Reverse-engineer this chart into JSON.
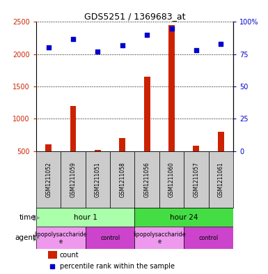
{
  "title": "GDS5251 / 1369683_at",
  "samples": [
    "GSM1211052",
    "GSM1211059",
    "GSM1211051",
    "GSM1211058",
    "GSM1211056",
    "GSM1211060",
    "GSM1211057",
    "GSM1211061"
  ],
  "counts": [
    600,
    1200,
    520,
    700,
    1650,
    2450,
    580,
    800
  ],
  "percentiles": [
    80,
    87,
    77,
    82,
    90,
    95,
    78,
    83
  ],
  "bar_color": "#cc2200",
  "scatter_color": "#0000cc",
  "ylim_left": [
    500,
    2500
  ],
  "ylim_right": [
    0,
    100
  ],
  "yticks_left": [
    500,
    1000,
    1500,
    2000,
    2500
  ],
  "yticks_right": [
    0,
    25,
    50,
    75,
    100
  ],
  "ytick_labels_right": [
    "0",
    "25",
    "50",
    "75",
    "100%"
  ],
  "time_groups": [
    {
      "label": "hour 1",
      "start": 0,
      "end": 4,
      "color": "#aaffaa"
    },
    {
      "label": "hour 24",
      "start": 4,
      "end": 8,
      "color": "#44dd44"
    }
  ],
  "agent_groups": [
    {
      "label": "lipopolysaccharide\ne",
      "start": 0,
      "end": 2,
      "color": "#ee99ee"
    },
    {
      "label": "control",
      "start": 2,
      "end": 4,
      "color": "#cc44cc"
    },
    {
      "label": "lipopolysaccharide\ne",
      "start": 4,
      "end": 6,
      "color": "#ee99ee"
    },
    {
      "label": "control",
      "start": 6,
      "end": 8,
      "color": "#cc44cc"
    }
  ],
  "legend_count_color": "#cc2200",
  "legend_scatter_color": "#0000cc",
  "left_tick_color": "#cc2200",
  "right_tick_color": "#0000cc",
  "grid_linestyle": "dotted",
  "bg_color": "#ffffff",
  "plot_bg_color": "#ffffff",
  "sample_bg_color": "#cccccc",
  "time_arrow_label": "time",
  "agent_arrow_label": "agent",
  "bar_width": 0.25
}
